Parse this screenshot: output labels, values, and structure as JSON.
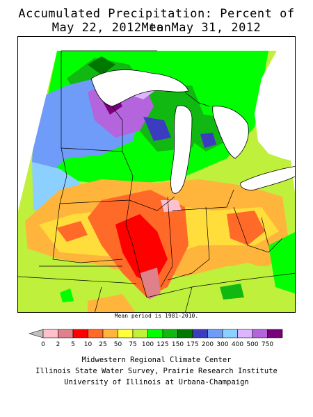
{
  "map": {
    "title_line1": "Accumulated Precipitation: Percent of Mean",
    "title_line2": "May 22, 2012 to May 31, 2012",
    "note": "Mean period is 1981-2010."
  },
  "legend": {
    "arrow_color": "#c0c0c0",
    "colors": [
      "#ffc0cb",
      "#e0808a",
      "#ff0000",
      "#ff6a28",
      "#ffb43c",
      "#ffff3a",
      "#bef03c",
      "#00ff00",
      "#12b812",
      "#007800",
      "#3c3cc0",
      "#6e9cf8",
      "#8cd0ff",
      "#dcb4ff",
      "#b464dc",
      "#780078"
    ],
    "labels": [
      "0",
      "2",
      "5",
      "10",
      "25",
      "50",
      "75",
      "100",
      "125",
      "150",
      "175",
      "200",
      "300",
      "400",
      "500",
      "750"
    ]
  },
  "credits": {
    "line1": "Midwestern Regional Climate Center",
    "line2": "Illinois State Water Survey, Prairie Research Institute",
    "line3": "University of Illinois at Urbana-Champaign"
  }
}
